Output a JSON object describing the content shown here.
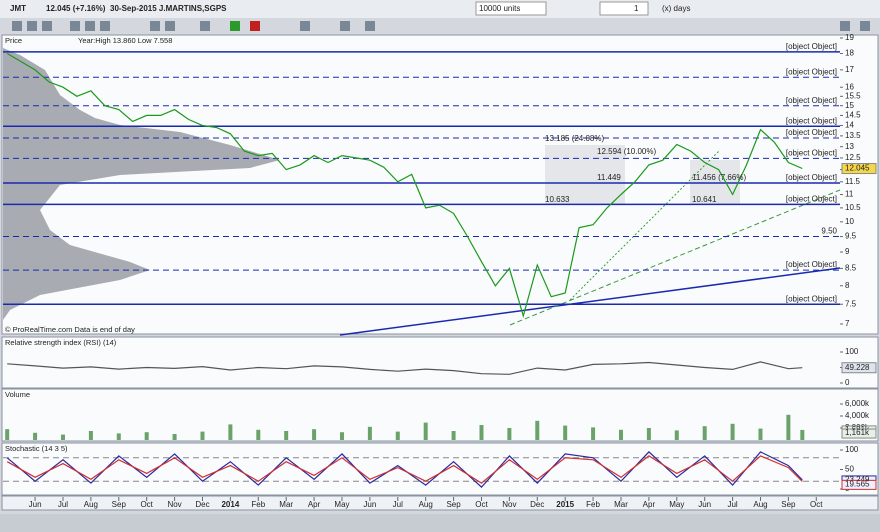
{
  "toolbar": {
    "symbol": "JMT",
    "quote": "12.045 (+7.16%)",
    "date_name": "30-Sep-2015 J.MARTINS,SGPS",
    "units": "10000 units",
    "period_value": "1",
    "period_unit": "(x) days"
  },
  "chart_data": [
    {
      "type": "line",
      "title": "Price",
      "subtitle": "Year:High 13.860 Low 7.558",
      "annotation": "© ProRealTime.com  Data is end of day",
      "x": [
        -1,
        -0.5,
        0,
        0.5,
        1,
        1.5,
        2,
        2.5,
        3,
        3.5,
        4,
        4.5,
        5,
        5.5,
        6,
        6.5,
        7,
        7.5,
        8,
        8.5,
        9,
        9.5,
        10,
        10.5,
        11,
        11.5,
        12,
        12.5,
        13,
        13.5,
        14,
        14.5,
        15,
        15.5,
        16,
        16.5,
        17,
        17.5,
        18,
        18.5,
        19,
        19.5,
        20,
        20.5,
        21,
        21.5,
        22,
        22.5,
        23,
        23.5,
        24,
        24.5,
        25,
        25.5,
        26,
        26.5,
        27,
        27.5
      ],
      "values": [
        18,
        17.5,
        17,
        16.3,
        16,
        15.5,
        15.8,
        15,
        14.8,
        14.2,
        14.5,
        14.5,
        14.8,
        14.3,
        14,
        13.9,
        13.6,
        12.8,
        12.6,
        12.7,
        12,
        12.2,
        12.6,
        12.3,
        12.6,
        12.5,
        12.4,
        12.1,
        11.5,
        11.8,
        10.5,
        10.6,
        10.3,
        9.5,
        8.7,
        8,
        8.5,
        7.2,
        8.6,
        7.7,
        7.8,
        9.8,
        9.9,
        10.5,
        11,
        11.5,
        12.2,
        12.4,
        13.1,
        12.8,
        12.3,
        12,
        11,
        12.2,
        13.8,
        13.2,
        12.3,
        12.045
      ],
      "color": "#1a9a1a",
      "log_scale": true,
      "ylim": [
        7,
        19
      ],
      "xlim": [
        -1.15,
        28.85
      ],
      "yticks": [
        19,
        18,
        17,
        16,
        15.5,
        15,
        14.5,
        14,
        13.5,
        13,
        12.5,
        12,
        11.5,
        11,
        10.5,
        10,
        9.5,
        9,
        8.5,
        8,
        7.5,
        7
      ],
      "levels": [
        {
          "value": 18.1,
          "style": "solid"
        },
        {
          "value": 16.57,
          "style": "dashed"
        },
        {
          "value": 15,
          "style": "dashed"
        },
        {
          "value": 13.96,
          "style": "solid"
        },
        {
          "value": 13.4,
          "style": "dashed"
        },
        {
          "value": 12.48,
          "style": "dashed"
        },
        {
          "value": 11.45,
          "style": "solid"
        },
        {
          "value": 10.63,
          "style": "solid"
        },
        {
          "value": 9.5,
          "label": "9.50",
          "style": "dashed"
        },
        {
          "value": 8.45,
          "style": "dashed"
        },
        {
          "value": 7.5,
          "style": "solid"
        }
      ],
      "annotations": [
        "13.185 (24.08%)",
        "12.594 (10.00%)",
        "11.449",
        "10.633",
        "11.456 (7.66%)",
        "10.641"
      ],
      "last_value": 12.045,
      "xticks": [
        {
          "value": 0,
          "label": "Jun"
        },
        {
          "value": 1,
          "label": "Jul"
        },
        {
          "value": 2,
          "label": "Aug"
        },
        {
          "value": 3,
          "label": "Sep"
        },
        {
          "value": 4,
          "label": "Oct"
        },
        {
          "value": 5,
          "label": "Nov"
        },
        {
          "value": 6,
          "label": "Dec"
        },
        {
          "value": 7,
          "label": "2014"
        },
        {
          "value": 8,
          "label": "Feb"
        },
        {
          "value": 9,
          "label": "Mar"
        },
        {
          "value": 10,
          "label": "Apr"
        },
        {
          "value": 11,
          "label": "May"
        },
        {
          "value": 12,
          "label": "Jun"
        },
        {
          "value": 13,
          "label": "Jul"
        },
        {
          "value": 14,
          "label": "Aug"
        },
        {
          "value": 15,
          "label": "Sep"
        },
        {
          "value": 16,
          "label": "Oct"
        },
        {
          "value": 17,
          "label": "Nov"
        },
        {
          "value": 18,
          "label": "Dec"
        },
        {
          "value": 19,
          "label": "2015"
        },
        {
          "value": 20,
          "label": "Feb"
        },
        {
          "value": 21,
          "label": "Mar"
        },
        {
          "value": 22,
          "label": "Apr"
        },
        {
          "value": 23,
          "label": "May"
        },
        {
          "value": 24,
          "label": "Jun"
        },
        {
          "value": 25,
          "label": "Jul"
        },
        {
          "value": 26,
          "label": "Aug"
        },
        {
          "value": 27,
          "label": "Sep"
        },
        {
          "value": 28,
          "label": "Oct"
        }
      ]
    },
    {
      "type": "line",
      "title": "Relative strength index (RSI) (14)",
      "xlim": [
        -1.15,
        28.85
      ],
      "ylim": [
        0,
        100
      ],
      "yticks": [
        100,
        50,
        0
      ],
      "color": "#555555",
      "x": [
        -1,
        0,
        1,
        2,
        3,
        4,
        5,
        6,
        7,
        8,
        9,
        10,
        11,
        12,
        13,
        14,
        15,
        16,
        17,
        18,
        19,
        20,
        21,
        22,
        23,
        24,
        25,
        26,
        27,
        27.5
      ],
      "values": [
        62,
        55,
        48,
        52,
        45,
        50,
        47,
        53,
        42,
        50,
        46,
        55,
        52,
        44,
        38,
        45,
        40,
        30,
        28,
        48,
        42,
        60,
        62,
        66,
        58,
        50,
        44,
        68,
        46,
        49.228
      ],
      "last_value": 49.228
    },
    {
      "type": "bar",
      "title": "Volume",
      "xlim": [
        -1.15,
        28.85
      ],
      "ylim": [
        0,
        7000
      ],
      "color": "#6aa36a",
      "yticks": [
        {
          "value": 6000,
          "label": "6,000k"
        },
        {
          "value": 4000,
          "label": "4,000k"
        },
        {
          "value": 2000,
          "label": "2,000k"
        }
      ],
      "x": [
        -1,
        0,
        1,
        2,
        3,
        4,
        5,
        6,
        7,
        8,
        9,
        10,
        11,
        12,
        13,
        14,
        15,
        16,
        17,
        18,
        19,
        20,
        21,
        22,
        23,
        24,
        25,
        26,
        27,
        27.5
      ],
      "values": [
        1800,
        1200,
        900,
        1500,
        1100,
        1300,
        1000,
        1400,
        2600,
        1700,
        1500,
        1800,
        1300,
        2200,
        1400,
        2900,
        1500,
        2500,
        2000,
        3200,
        2400,
        2100,
        1700,
        2000,
        1600,
        2300,
        2700,
        1900,
        4200,
        1681
      ],
      "last_labels": [
        {
          "value": 1681,
          "label": "1,681k"
        },
        {
          "value": 1161,
          "label": "1,161k"
        }
      ]
    },
    {
      "type": "line",
      "title": "Stochastic (14 3 5)",
      "xlim": [
        -1.15,
        28.85
      ],
      "ylim": [
        0,
        100
      ],
      "yticks": [
        100,
        50,
        0
      ],
      "levels": [
        80,
        20
      ],
      "x": [
        -1,
        0,
        1,
        2,
        3,
        4,
        5,
        6,
        7,
        8,
        9,
        10,
        11,
        12,
        13,
        14,
        15,
        16,
        17,
        18,
        19,
        20,
        21,
        22,
        23,
        24,
        25,
        26,
        27,
        27.5
      ],
      "series": [
        {
          "color": "#2a2aa0",
          "values": [
            80,
            20,
            75,
            15,
            85,
            30,
            90,
            20,
            70,
            10,
            80,
            25,
            90,
            15,
            60,
            10,
            70,
            5,
            85,
            15,
            90,
            80,
            20,
            95,
            30,
            85,
            10,
            95,
            60,
            23.249
          ]
        },
        {
          "color": "#d03030",
          "values": [
            70,
            30,
            65,
            25,
            75,
            40,
            80,
            30,
            60,
            20,
            70,
            35,
            80,
            25,
            55,
            20,
            60,
            15,
            75,
            25,
            80,
            75,
            30,
            85,
            40,
            75,
            20,
            85,
            55,
            19.565
          ]
        }
      ]
    }
  ]
}
